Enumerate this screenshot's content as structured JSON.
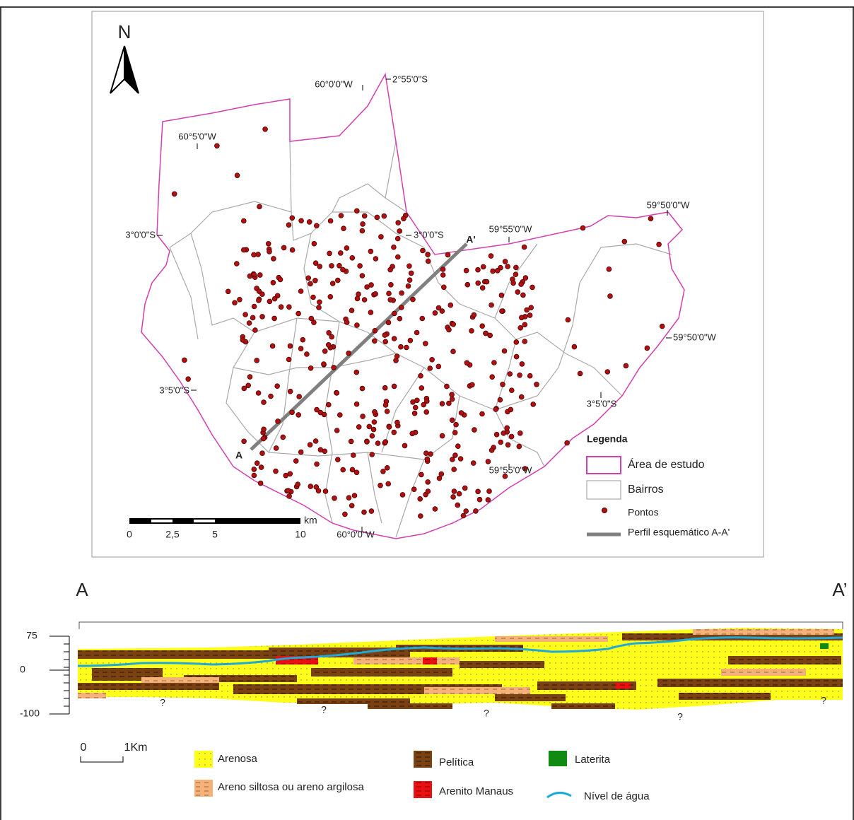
{
  "map": {
    "north": "N",
    "coordinates": [
      "60°0'0\"W",
      "2°55'0\"S",
      "60°5'0\"W",
      "3°0'0\"S",
      "3°0'0\"S",
      "59°55'0\"W",
      "59°50'0\"W",
      "59°50'0\"W",
      "3°5'0\"S",
      "3°5'0\"S",
      "59°55'0\"W",
      "60°0'0\"W"
    ],
    "profile_ends": [
      "A",
      "A'"
    ],
    "scale": {
      "ticks": [
        "0",
        "2,5",
        "5",
        "10"
      ],
      "unit": "km"
    },
    "legend": {
      "title": "Legenda",
      "items": [
        "Área de estudo",
        "Bairros",
        "Pontos",
        "Perfil esquemático A-A'"
      ]
    }
  },
  "section": {
    "ends": [
      "A",
      "A’"
    ],
    "axis": [
      "75",
      "0",
      "-100"
    ],
    "unknown": [
      "?",
      "?",
      "?",
      "?",
      "?"
    ],
    "scale": [
      "0",
      "1Km"
    ],
    "legend": [
      "Arenosa",
      "Areno siltosa ou areno argilosa",
      "Pelítica",
      "Arenito Manaus",
      "Laterita",
      "Nível de água"
    ]
  }
}
